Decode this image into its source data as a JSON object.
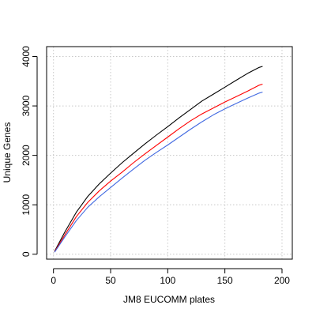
{
  "chart_data": {
    "type": "line",
    "xlabel": "JM8 EUCOMM plates",
    "ylabel": "Unique Genes",
    "xlim": [
      -6,
      209
    ],
    "ylim": [
      -100,
      4200
    ],
    "x_ticks": [
      0,
      50,
      100,
      150,
      200
    ],
    "y_ticks": [
      0,
      1000,
      2000,
      3000,
      4000
    ],
    "grid": true,
    "legend": "none",
    "series": [
      {
        "color": "#000000",
        "x": [
          1,
          10,
          20,
          30,
          40,
          50,
          60,
          70,
          80,
          90,
          100,
          110,
          120,
          130,
          140,
          150,
          160,
          170,
          180,
          183
        ],
        "values": [
          60,
          450,
          850,
          1170,
          1420,
          1640,
          1850,
          2040,
          2230,
          2410,
          2580,
          2760,
          2930,
          3100,
          3240,
          3380,
          3520,
          3660,
          3780,
          3800
        ]
      },
      {
        "color": "#ff0000",
        "x": [
          1,
          10,
          20,
          30,
          40,
          50,
          60,
          70,
          80,
          90,
          100,
          110,
          120,
          130,
          140,
          150,
          160,
          170,
          180,
          183
        ],
        "values": [
          50,
          390,
          760,
          1050,
          1280,
          1480,
          1660,
          1850,
          2030,
          2200,
          2370,
          2540,
          2700,
          2840,
          2960,
          3080,
          3190,
          3300,
          3420,
          3440
        ]
      },
      {
        "color": "#4169e1",
        "x": [
          1,
          10,
          20,
          30,
          40,
          50,
          60,
          70,
          80,
          90,
          100,
          110,
          120,
          130,
          140,
          150,
          160,
          170,
          180,
          183
        ],
        "values": [
          40,
          350,
          680,
          950,
          1160,
          1350,
          1540,
          1720,
          1900,
          2060,
          2210,
          2370,
          2530,
          2680,
          2820,
          2940,
          3050,
          3160,
          3260,
          3280
        ]
      }
    ]
  }
}
